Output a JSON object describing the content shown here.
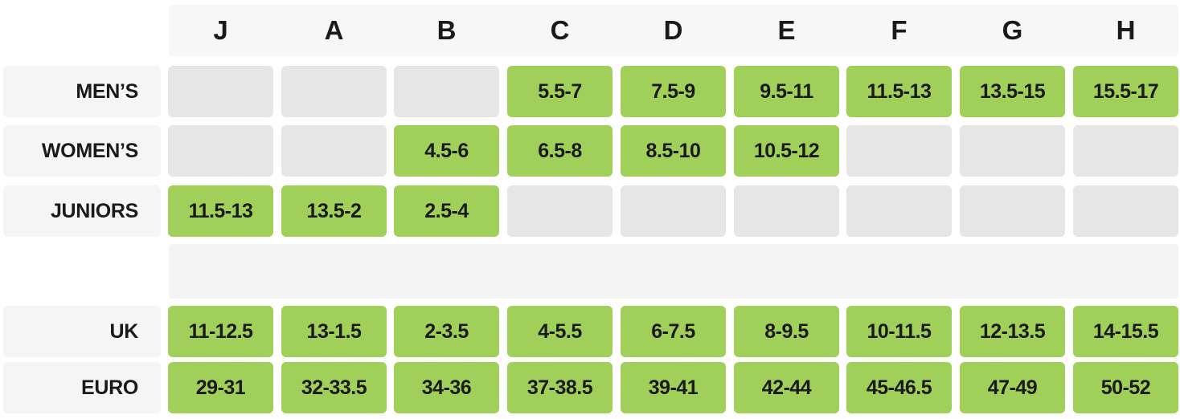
{
  "columns": [
    "J",
    "A",
    "B",
    "C",
    "D",
    "E",
    "F",
    "G",
    "H"
  ],
  "rows": [
    {
      "label": "MEN’S",
      "cells": [
        "",
        "",
        "",
        "5.5-7",
        "7.5-9",
        "9.5-11",
        "11.5-13",
        "13.5-15",
        "15.5-17"
      ]
    },
    {
      "label": "WOMEN’S",
      "cells": [
        "",
        "",
        "4.5-6",
        "6.5-8",
        "8.5-10",
        "10.5-12",
        "",
        "",
        ""
      ]
    },
    {
      "label": "JUNIORS",
      "cells": [
        "11.5-13",
        "13.5-2",
        "2.5-4",
        "",
        "",
        "",
        "",
        "",
        ""
      ]
    },
    {
      "label": "UK",
      "cells": [
        "11-12.5",
        "13-1.5",
        "2-3.5",
        "4-5.5",
        "6-7.5",
        "8-9.5",
        "10-11.5",
        "12-13.5",
        "14-15.5"
      ]
    },
    {
      "label": "EURO",
      "cells": [
        "29-31",
        "32-33.5",
        "34-36",
        "37-38.5",
        "39-41",
        "42-44",
        "45-46.5",
        "47-49",
        "50-52"
      ]
    }
  ],
  "colors": {
    "filled_cell": "#a1d05a",
    "empty_cell": "#e6e6e6",
    "label_bg": "#f5f5f5",
    "text": "#1a1a1a"
  }
}
